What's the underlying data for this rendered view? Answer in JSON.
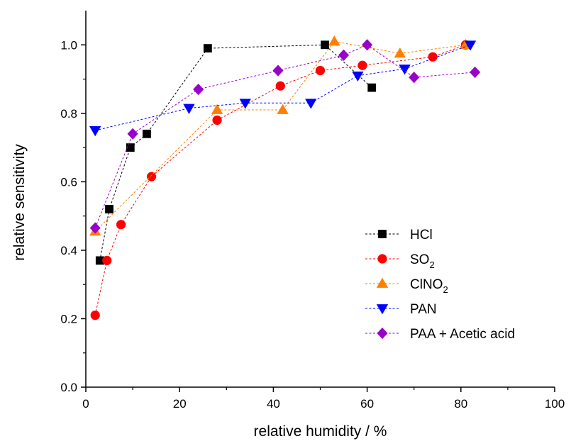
{
  "chart_data": {
    "type": "line",
    "xlabel": "relative humidity / %",
    "ylabel": "relative sensitivity",
    "xlim": [
      0,
      100
    ],
    "ylim": [
      0,
      1.1
    ],
    "xticks": [
      "0",
      "20",
      "40",
      "60",
      "80",
      "100"
    ],
    "yticks": [
      "0.0",
      "0.2",
      "0.4",
      "0.6",
      "0.8",
      "1.0"
    ],
    "legend_position": "bottom-right",
    "series": [
      {
        "name": "HCl",
        "color": "#000000",
        "marker": "square",
        "points": [
          [
            3,
            0.37
          ],
          [
            5,
            0.52
          ],
          [
            9.5,
            0.7
          ],
          [
            13,
            0.74
          ],
          [
            26,
            0.99
          ],
          [
            51,
            1.0
          ],
          [
            61,
            0.875
          ]
        ]
      },
      {
        "name": "SO",
        "subscript": "2",
        "color": "#ff0000",
        "marker": "circle",
        "points": [
          [
            2,
            0.21
          ],
          [
            4.5,
            0.37
          ],
          [
            7.5,
            0.475
          ],
          [
            14,
            0.615
          ],
          [
            28,
            0.78
          ],
          [
            41.5,
            0.88
          ],
          [
            50,
            0.925
          ],
          [
            59,
            0.94
          ],
          [
            74,
            0.965
          ],
          [
            81,
            1.0
          ]
        ]
      },
      {
        "name": "ClNO",
        "subscript": "2",
        "color": "#ff8000",
        "marker": "triangle-up",
        "points": [
          [
            2,
            0.455
          ],
          [
            28,
            0.81
          ],
          [
            42,
            0.81
          ],
          [
            53,
            1.01
          ],
          [
            67,
            0.975
          ],
          [
            81,
            1.0
          ]
        ]
      },
      {
        "name": "PAN",
        "color": "#0000ff",
        "marker": "triangle-down",
        "points": [
          [
            2,
            0.75
          ],
          [
            22,
            0.815
          ],
          [
            34,
            0.83
          ],
          [
            48,
            0.83
          ],
          [
            58,
            0.91
          ],
          [
            68,
            0.93
          ],
          [
            82,
            1.0
          ]
        ]
      },
      {
        "name": "PAA + Acetic acid",
        "color": "#9900cc",
        "marker": "diamond",
        "points": [
          [
            2,
            0.465
          ],
          [
            10,
            0.74
          ],
          [
            24,
            0.87
          ],
          [
            41,
            0.925
          ],
          [
            55,
            0.97
          ],
          [
            60,
            1.0
          ],
          [
            70,
            0.905
          ],
          [
            83,
            0.92
          ]
        ]
      }
    ]
  }
}
